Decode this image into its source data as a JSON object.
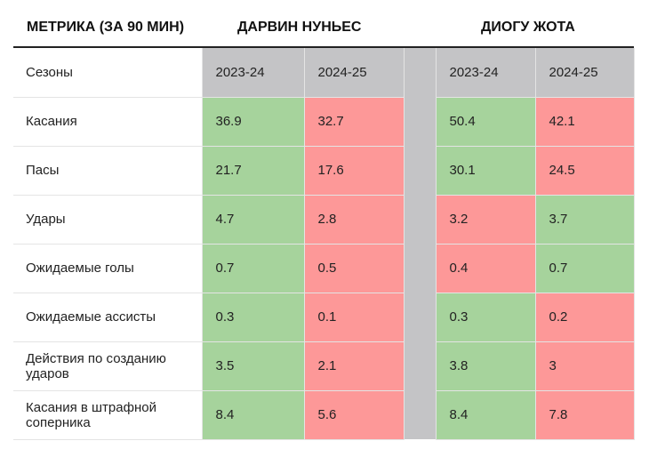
{
  "header": {
    "metric": "МЕТРИКА (ЗА 90 МИН)",
    "player1": "ДАРВИН НУНЬЕС",
    "player2": "ДИОГУ ЖОТА"
  },
  "chart_data": {
    "type": "table",
    "columns": [
      {
        "player": "ДАРВИН НУНЬЕС",
        "season": "2023-24"
      },
      {
        "player": "ДАРВИН НУНЬЕС",
        "season": "2024-25"
      },
      {
        "player": "ДИОГУ ЖОТА",
        "season": "2023-24"
      },
      {
        "player": "ДИОГУ ЖОТА",
        "season": "2024-25"
      }
    ],
    "season_row_label": "Сезоны",
    "rows": [
      {
        "label": "Касания",
        "values": [
          "36.9",
          "32.7",
          "50.4",
          "42.1"
        ],
        "better": [
          true,
          false,
          true,
          false
        ]
      },
      {
        "label": "Пасы",
        "values": [
          "21.7",
          "17.6",
          "30.1",
          "24.5"
        ],
        "better": [
          true,
          false,
          true,
          false
        ]
      },
      {
        "label": "Удары",
        "values": [
          "4.7",
          "2.8",
          "3.2",
          "3.7"
        ],
        "better": [
          true,
          false,
          false,
          true
        ]
      },
      {
        "label": "Ожидаемые голы",
        "values": [
          "0.7",
          "0.5",
          "0.4",
          "0.7"
        ],
        "better": [
          true,
          false,
          false,
          true
        ]
      },
      {
        "label": "Ожидаемые ассисты",
        "values": [
          "0.3",
          "0.1",
          "0.3",
          "0.2"
        ],
        "better": [
          true,
          false,
          true,
          false
        ]
      },
      {
        "label": "Действия по созданию ударов",
        "values": [
          "3.5",
          "2.1",
          "3.8",
          "3"
        ],
        "better": [
          true,
          false,
          true,
          false
        ]
      },
      {
        "label": "Касания в штрафной соперника",
        "values": [
          "8.4",
          "5.6",
          "8.4",
          "7.8"
        ],
        "better": [
          true,
          false,
          true,
          false
        ]
      }
    ],
    "colors": {
      "better": "#a6d39c",
      "worse": "#fd9898",
      "season_header": "#c4c4c6",
      "separator": "#c4c4c6"
    }
  }
}
